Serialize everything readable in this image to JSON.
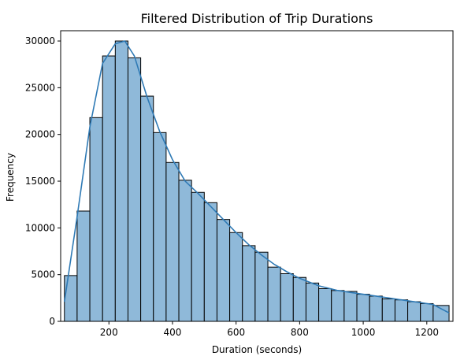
{
  "chart_data": {
    "type": "bar",
    "subtype": "histogram",
    "title": "Filtered Distribution of Trip Durations",
    "xlabel": "Duration (seconds)",
    "ylabel": "Frequency",
    "xlim": [
      0,
      1300
    ],
    "ylim": [
      0,
      31000
    ],
    "x_ticks": [
      200,
      400,
      600,
      800,
      1000,
      1200
    ],
    "y_ticks": [
      0,
      5000,
      10000,
      15000,
      20000,
      25000,
      30000
    ],
    "grid": false,
    "legend": "none",
    "bar_color": "#8fb9d9",
    "bar_edge_color": "#000000",
    "kde_color": "#2f7ab5",
    "bins": [
      {
        "start": 60,
        "end": 100,
        "count": 4900
      },
      {
        "start": 100,
        "end": 140,
        "count": 11800
      },
      {
        "start": 140,
        "end": 180,
        "count": 21800
      },
      {
        "start": 180,
        "end": 220,
        "count": 28400
      },
      {
        "start": 220,
        "end": 260,
        "count": 30000
      },
      {
        "start": 260,
        "end": 300,
        "count": 28200
      },
      {
        "start": 300,
        "end": 340,
        "count": 24100
      },
      {
        "start": 340,
        "end": 380,
        "count": 20200
      },
      {
        "start": 380,
        "end": 420,
        "count": 17000
      },
      {
        "start": 420,
        "end": 460,
        "count": 15100
      },
      {
        "start": 460,
        "end": 500,
        "count": 13800
      },
      {
        "start": 500,
        "end": 540,
        "count": 12700
      },
      {
        "start": 540,
        "end": 580,
        "count": 10900
      },
      {
        "start": 580,
        "end": 620,
        "count": 9500
      },
      {
        "start": 620,
        "end": 660,
        "count": 8100
      },
      {
        "start": 660,
        "end": 700,
        "count": 7400
      },
      {
        "start": 700,
        "end": 740,
        "count": 5800
      },
      {
        "start": 740,
        "end": 780,
        "count": 5100
      },
      {
        "start": 780,
        "end": 820,
        "count": 4700
      },
      {
        "start": 820,
        "end": 860,
        "count": 4100
      },
      {
        "start": 860,
        "end": 900,
        "count": 3500
      },
      {
        "start": 900,
        "end": 940,
        "count": 3300
      },
      {
        "start": 940,
        "end": 980,
        "count": 3200
      },
      {
        "start": 980,
        "end": 1020,
        "count": 2900
      },
      {
        "start": 1020,
        "end": 1060,
        "count": 2700
      },
      {
        "start": 1060,
        "end": 1100,
        "count": 2400
      },
      {
        "start": 1100,
        "end": 1140,
        "count": 2300
      },
      {
        "start": 1140,
        "end": 1180,
        "count": 2100
      },
      {
        "start": 1180,
        "end": 1220,
        "count": 1900
      },
      {
        "start": 1220,
        "end": 1270,
        "count": 1700
      }
    ],
    "kde": {
      "x": [
        60,
        100,
        140,
        180,
        220,
        250,
        280,
        320,
        360,
        400,
        440,
        480,
        520,
        560,
        600,
        640,
        680,
        720,
        760,
        800,
        860,
        920,
        980,
        1040,
        1100,
        1160,
        1220,
        1270
      ],
      "y": [
        2100,
        11200,
        20800,
        27600,
        29700,
        30000,
        28400,
        24000,
        20300,
        17300,
        15000,
        13700,
        12300,
        10900,
        9500,
        8200,
        7100,
        6100,
        5300,
        4600,
        3800,
        3300,
        3000,
        2700,
        2400,
        2100,
        1800,
        900
      ]
    }
  }
}
